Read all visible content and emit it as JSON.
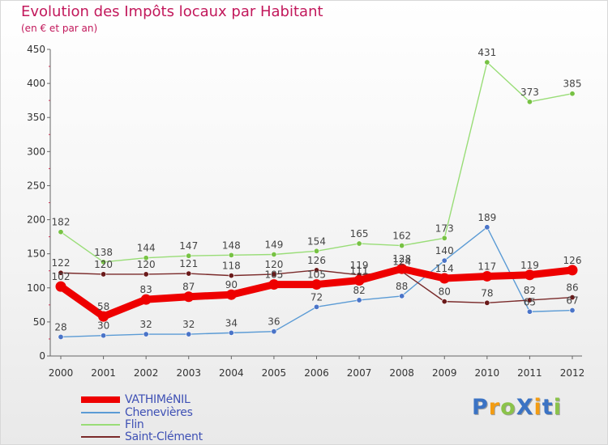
{
  "header": {
    "title": "Evolution des Impôts locaux par Habitant",
    "subtitle": "(en € et par an)"
  },
  "logo": {
    "text": "ProXiti",
    "letters": [
      {
        "ch": "P",
        "color": "#3b73c4"
      },
      {
        "ch": "r",
        "color": "#f39c12"
      },
      {
        "ch": "o",
        "color": "#8bc34a"
      },
      {
        "ch": "X",
        "color": "#3b73c4"
      },
      {
        "ch": "i",
        "color": "#f39c12"
      },
      {
        "ch": "t",
        "color": "#3b73c4"
      },
      {
        "ch": "i",
        "color": "#8bc34a"
      }
    ]
  },
  "chart_data": {
    "type": "line",
    "title": "Evolution des Impôts locaux par Habitant",
    "subtitle": "(en € et par an)",
    "xlabel": "",
    "ylabel": "",
    "x": [
      "2000",
      "2001",
      "2002",
      "2003",
      "2004",
      "2005",
      "2006",
      "2007",
      "2008",
      "2009",
      "2010",
      "2011",
      "2012"
    ],
    "ylim": [
      0,
      450
    ],
    "yticks": [
      0,
      50,
      100,
      150,
      200,
      250,
      300,
      350,
      400,
      450
    ],
    "grid": false,
    "legend_position": "bottom-left",
    "series": [
      {
        "name": "VATHIMéNIL",
        "color": "#ee0000",
        "emphasis": true,
        "values": [
          102,
          58,
          83,
          87,
          90,
          105,
          105,
          111,
          128,
          114,
          117,
          119,
          126
        ],
        "labels": [
          "102",
          "58",
          "83",
          "87",
          "90",
          "105",
          "105",
          "111",
          "128",
          "114",
          "117",
          "119",
          "126"
        ]
      },
      {
        "name": "Chenevières",
        "color": "#5b9bd5",
        "marker": "#4a74c8",
        "values": [
          28,
          30,
          32,
          32,
          34,
          36,
          72,
          82,
          88,
          140,
          189,
          65,
          67
        ],
        "labels": [
          "28",
          "30",
          "32",
          "32",
          "34",
          "36",
          "72",
          "82",
          "88",
          "140",
          "189",
          "65",
          "67"
        ]
      },
      {
        "name": "Flin",
        "color": "#99dd77",
        "marker": "#77c244",
        "values": [
          182,
          138,
          144,
          147,
          148,
          149,
          154,
          165,
          162,
          173,
          431,
          373,
          385
        ],
        "labels": [
          "182",
          "138",
          "144",
          "147",
          "148",
          "149",
          "154",
          "165",
          "162",
          "173",
          "431",
          "373",
          "385"
        ]
      },
      {
        "name": "Saint-Clément",
        "color": "#7a2a2a",
        "marker": "#6a1a1a",
        "values": [
          122,
          120,
          120,
          121,
          118,
          120,
          126,
          119,
          124,
          80,
          78,
          82,
          86
        ],
        "labels": [
          "122",
          "120",
          "120",
          "121",
          "118",
          "120",
          "126",
          "119",
          "124",
          "80",
          "78",
          "82",
          "86"
        ]
      }
    ]
  }
}
